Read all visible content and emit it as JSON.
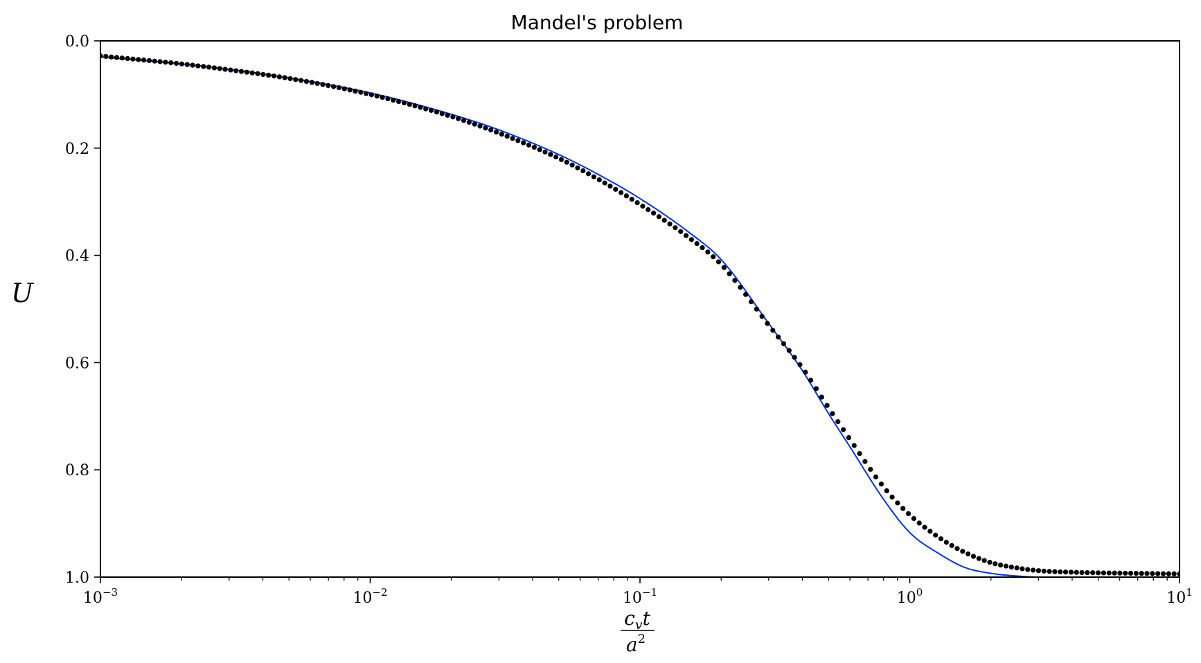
{
  "chart_data": {
    "type": "line",
    "title": "Mandel's problem",
    "xlabel": {
      "numerator": "c",
      "numerator_sub": "v",
      "numerator_tail": "t",
      "denominator": "a",
      "denominator_sup": "2"
    },
    "ylabel": "U",
    "xscale": "log",
    "xlim": [
      0.001,
      10
    ],
    "ylim": [
      0.0,
      1.0
    ],
    "y_inverted": true,
    "grid": false,
    "x_ticks": [
      {
        "value": 0.001,
        "base": "10",
        "exp": "−3"
      },
      {
        "value": 0.01,
        "base": "10",
        "exp": "−2"
      },
      {
        "value": 0.1,
        "base": "10",
        "exp": "−1"
      },
      {
        "value": 1,
        "base": "10",
        "exp": "0"
      },
      {
        "value": 10,
        "base": "10",
        "exp": "1"
      }
    ],
    "y_ticks": [
      {
        "value": 0.0,
        "label": "0.0"
      },
      {
        "value": 0.2,
        "label": "0.2"
      },
      {
        "value": 0.4,
        "label": "0.4"
      },
      {
        "value": 0.6,
        "label": "0.6"
      },
      {
        "value": 0.8,
        "label": "0.8"
      },
      {
        "value": 1.0,
        "label": "1.0"
      }
    ],
    "series": [
      {
        "style": "line",
        "color": "#0033dd",
        "x": [
          0.001,
          0.002,
          0.003,
          0.005,
          0.01,
          0.02,
          0.03,
          0.05,
          0.07,
          0.1,
          0.15,
          0.2,
          0.3,
          0.4,
          0.5,
          0.6,
          0.8,
          1.0,
          1.3,
          1.6,
          2.0,
          2.5,
          3.0,
          4.0,
          5.0,
          7.0,
          10.0
        ],
        "y": [
          0.03,
          0.043,
          0.053,
          0.069,
          0.097,
          0.137,
          0.166,
          0.212,
          0.249,
          0.294,
          0.355,
          0.408,
          0.527,
          0.615,
          0.695,
          0.757,
          0.855,
          0.917,
          0.958,
          0.982,
          0.993,
          0.998,
          1.0,
          1.0,
          1.0,
          1.0,
          1.0
        ]
      },
      {
        "style": "points",
        "color": "#000000",
        "x": [
          0.001,
          0.002,
          0.003,
          0.005,
          0.01,
          0.02,
          0.03,
          0.05,
          0.07,
          0.1,
          0.15,
          0.2,
          0.3,
          0.4,
          0.5,
          0.6,
          0.8,
          1.0,
          1.3,
          1.6,
          2.0,
          2.5,
          3.0,
          4.0,
          5.0,
          7.0,
          10.0
        ],
        "y": [
          0.028,
          0.043,
          0.054,
          0.07,
          0.1,
          0.141,
          0.172,
          0.219,
          0.258,
          0.305,
          0.365,
          0.417,
          0.53,
          0.61,
          0.684,
          0.743,
          0.832,
          0.884,
          0.928,
          0.954,
          0.973,
          0.983,
          0.988,
          0.991,
          0.992,
          0.993,
          0.994
        ]
      }
    ]
  }
}
